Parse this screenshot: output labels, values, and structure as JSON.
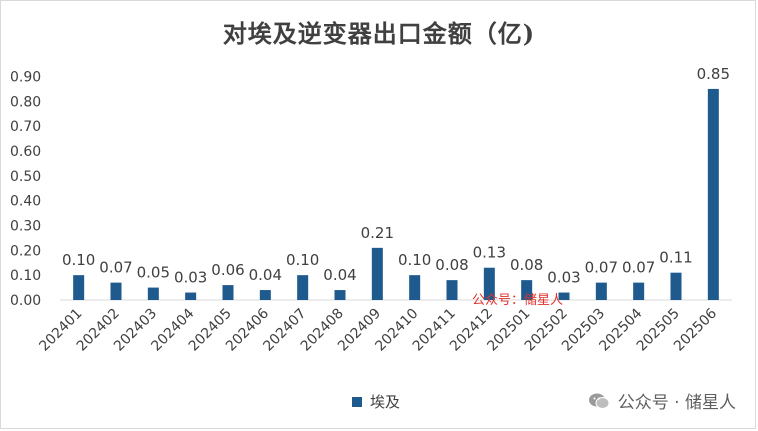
{
  "chart_data": {
    "type": "bar",
    "title": "对埃及逆变器出口金额（亿)",
    "categories": [
      "202401",
      "202402",
      "202403",
      "202404",
      "202405",
      "202406",
      "202407",
      "202408",
      "202409",
      "202410",
      "202411",
      "202412",
      "202501",
      "202502",
      "202503",
      "202504",
      "202505",
      "202506"
    ],
    "series": [
      {
        "name": "埃及",
        "values": [
          0.1,
          0.07,
          0.05,
          0.03,
          0.06,
          0.04,
          0.1,
          0.04,
          0.21,
          0.1,
          0.08,
          0.13,
          0.08,
          0.03,
          0.07,
          0.07,
          0.11,
          0.85
        ]
      }
    ],
    "data_labels": [
      "0.10",
      "0.07",
      "0.05",
      "0.03",
      "0.06",
      "0.04",
      "0.10",
      "0.04",
      "0.21",
      "0.10",
      "0.08",
      "0.13",
      "0.08",
      "0.03",
      "0.07",
      "0.07",
      "0.11",
      "0.85"
    ],
    "y_ticks": [
      "0.00",
      "0.10",
      "0.20",
      "0.30",
      "0.40",
      "0.50",
      "0.60",
      "0.70",
      "0.80",
      "0.90"
    ],
    "ylim": [
      0,
      0.9
    ],
    "grid": false,
    "legend": "bottom",
    "bar_color": "#1f5a8e"
  },
  "watermark": {
    "red_text": "公众号：储星人",
    "corner_text": "公众号 · 储星人"
  }
}
